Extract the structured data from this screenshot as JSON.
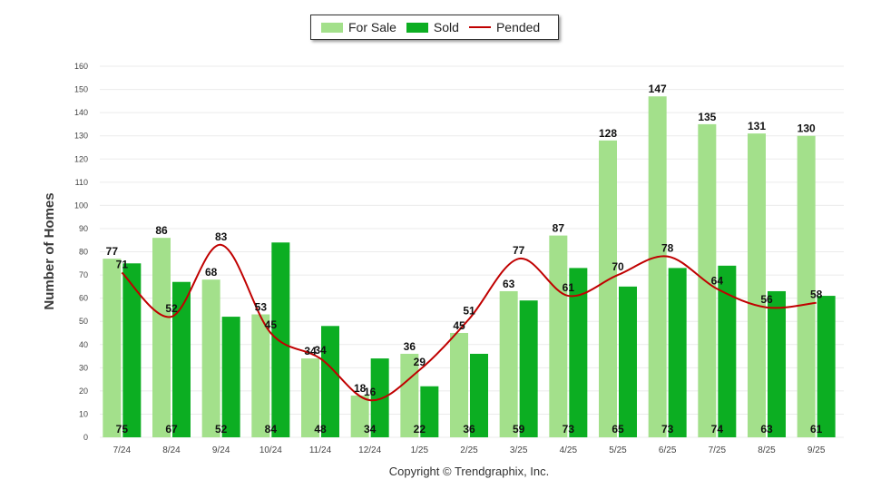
{
  "chart_data": {
    "type": "bar",
    "categories": [
      "7/24",
      "8/24",
      "9/24",
      "10/24",
      "11/24",
      "12/24",
      "1/25",
      "2/25",
      "3/25",
      "4/25",
      "5/25",
      "6/25",
      "7/25",
      "8/25",
      "9/25"
    ],
    "series": [
      {
        "name": "For Sale",
        "type": "bar",
        "color": "#a3e08b",
        "values": [
          77,
          86,
          68,
          53,
          34,
          18,
          36,
          45,
          63,
          87,
          128,
          147,
          135,
          131,
          130
        ]
      },
      {
        "name": "Sold",
        "type": "bar",
        "color": "#0cae22",
        "values": [
          75,
          67,
          52,
          84,
          48,
          34,
          22,
          36,
          59,
          73,
          65,
          73,
          74,
          63,
          61
        ]
      },
      {
        "name": "Pended",
        "type": "line",
        "color": "#c00000",
        "values": [
          71,
          52,
          83,
          45,
          34,
          16,
          29,
          51,
          77,
          61,
          70,
          78,
          64,
          56,
          58
        ]
      }
    ],
    "ylabel": "Number of Homes",
    "xlabel": "",
    "ylim": [
      0,
      160
    ],
    "yticks": [
      0,
      10,
      20,
      30,
      40,
      50,
      60,
      70,
      80,
      90,
      100,
      110,
      120,
      130,
      140,
      150,
      160
    ],
    "legend_position": "top-center"
  },
  "legend": {
    "for_sale": "For Sale",
    "sold": "Sold",
    "pended": "Pended"
  },
  "footer": {
    "copyright": "Copyright © Trendgraphix, Inc."
  }
}
